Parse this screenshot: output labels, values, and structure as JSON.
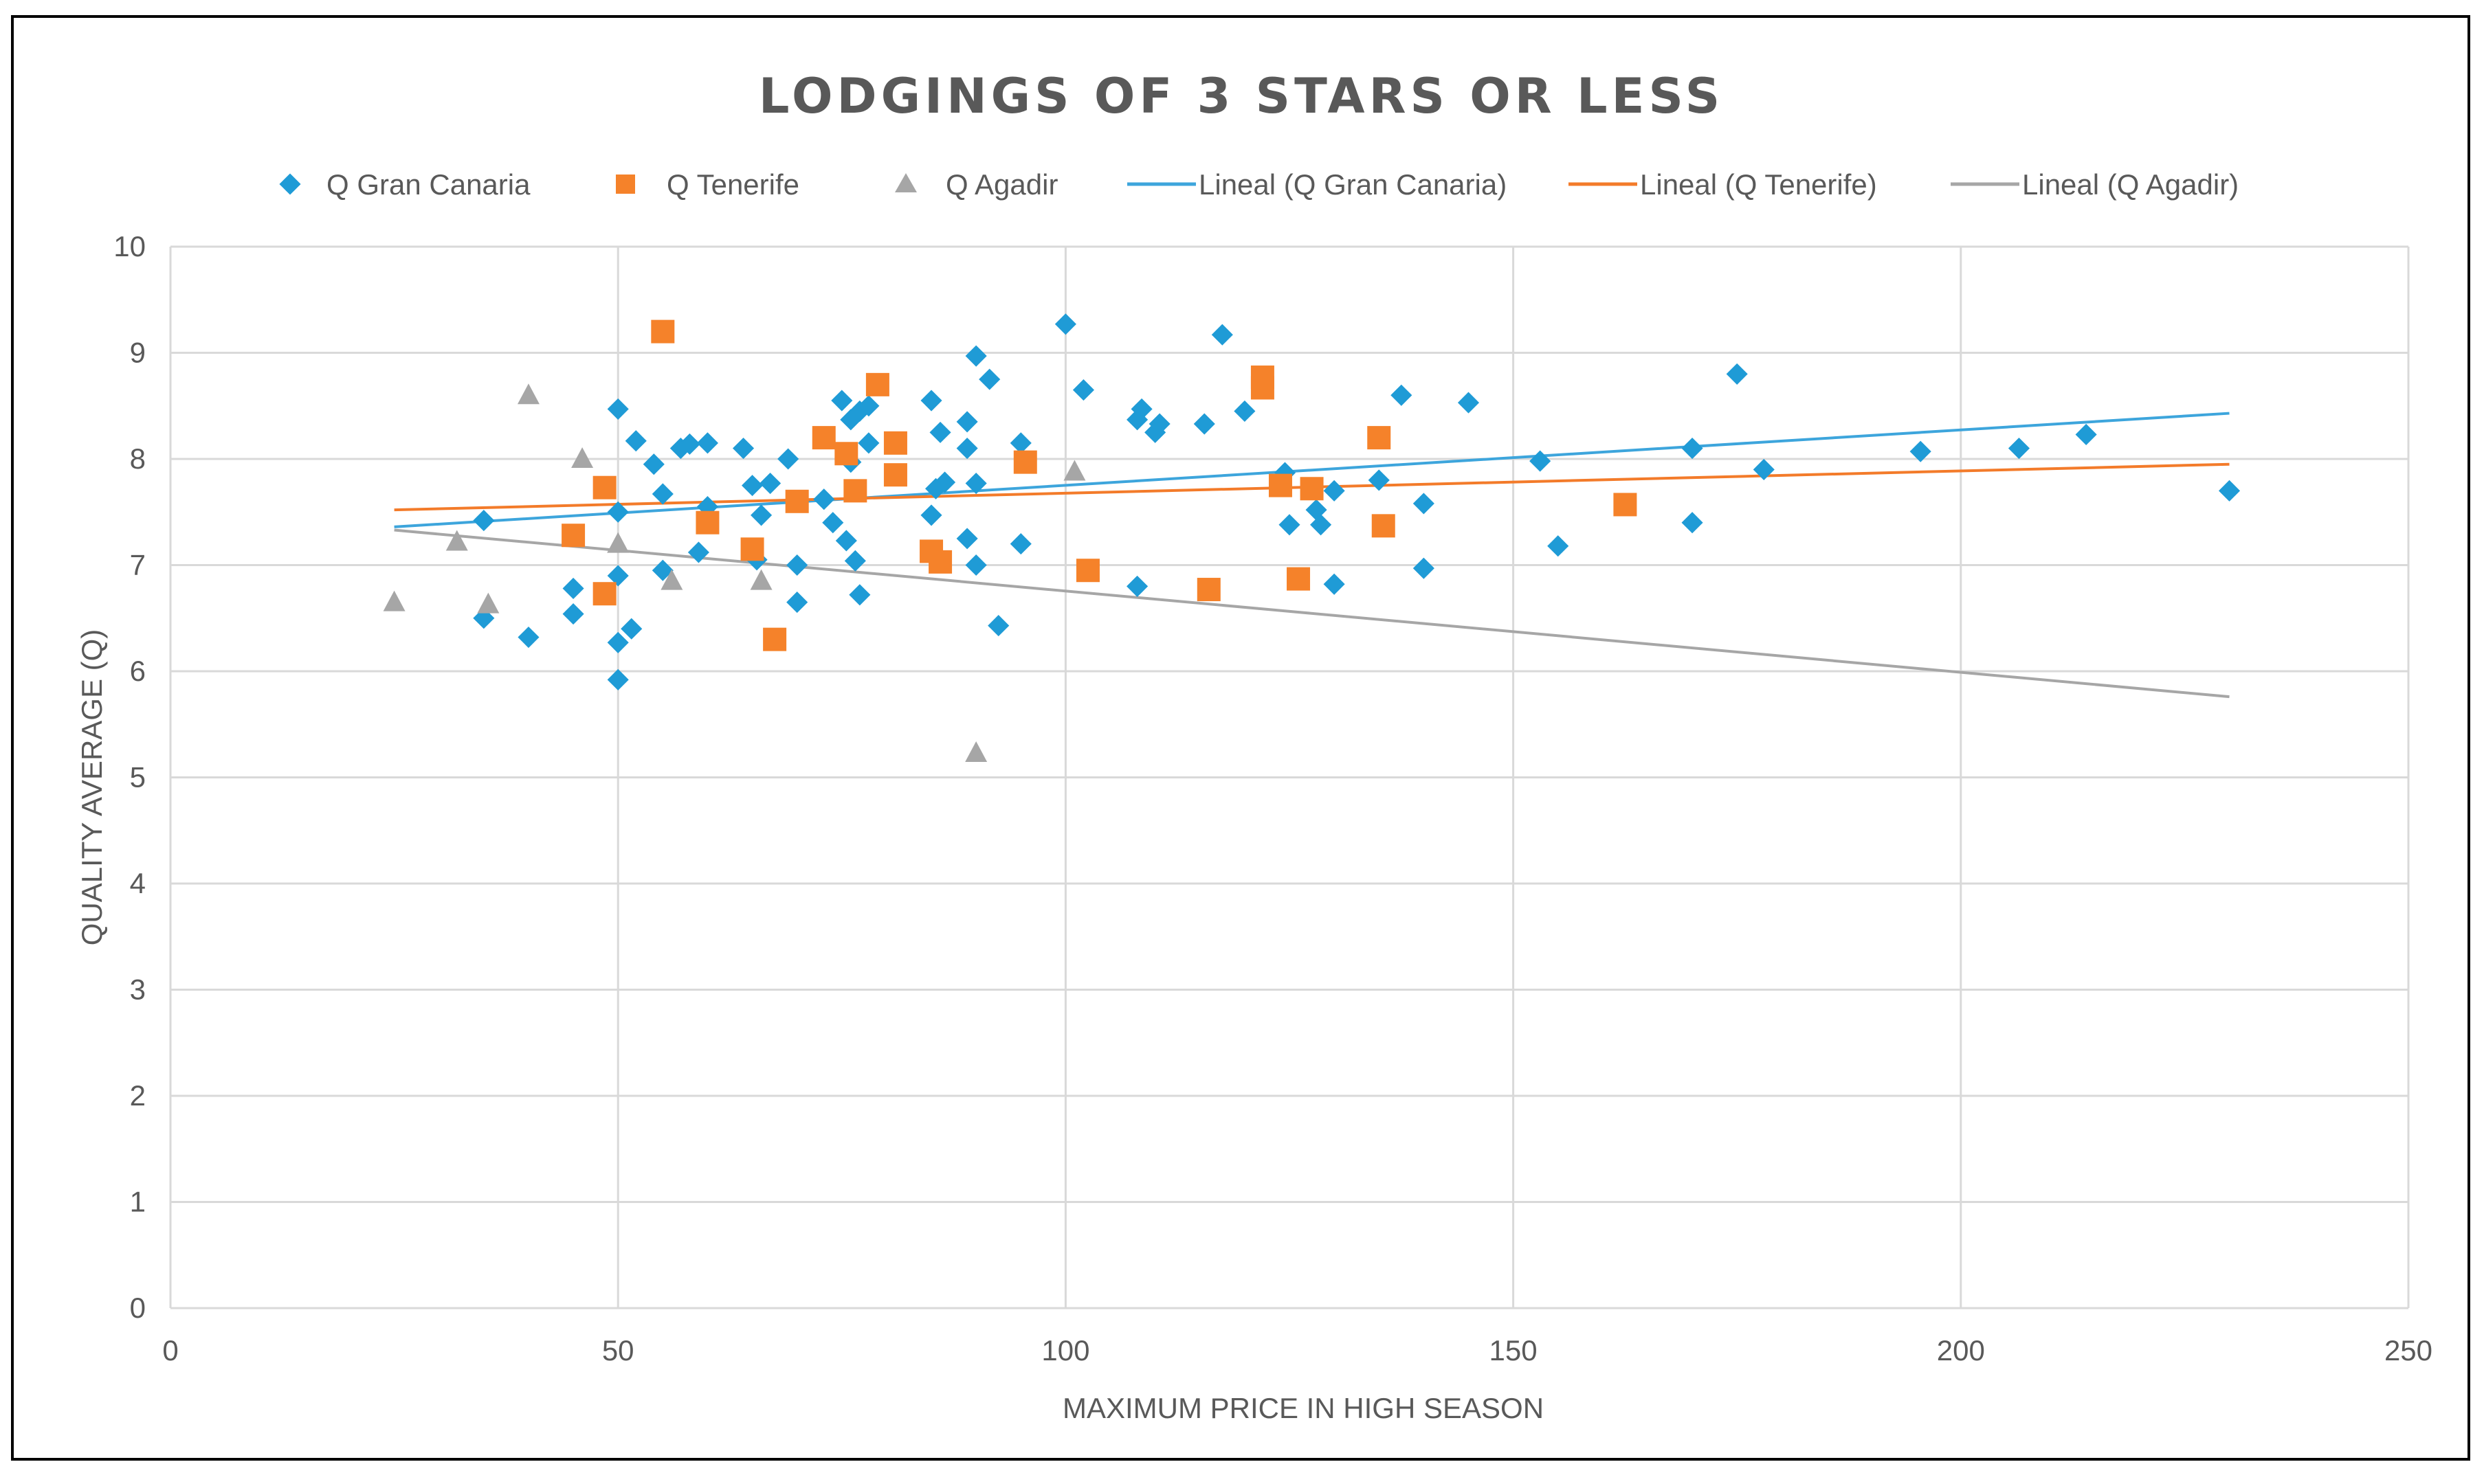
{
  "chart_data": {
    "type": "scatter",
    "title": "LODGINGS OF 3 STARS OR LESS",
    "xlabel": "MAXIMUM PRICE IN HIGH SEASON",
    "ylabel": "QUALITY AVERAGE (Q)",
    "xlim": [
      0,
      250
    ],
    "ylim": [
      0,
      10
    ],
    "xticks": [
      0,
      50,
      100,
      150,
      200,
      250
    ],
    "yticks": [
      0,
      1,
      2,
      3,
      4,
      5,
      6,
      7,
      8,
      9,
      10
    ],
    "grid": true,
    "legend_position": "top",
    "legend": [
      "Q Gran Canaria",
      "Q Tenerife",
      "Q Agadir",
      "Lineal (Q Gran Canaria)",
      "Lineal (Q Tenerife)",
      "Lineal (Q Agadir)"
    ],
    "series": [
      {
        "name": "Q Gran Canaria",
        "marker": "diamond",
        "color": "#1f9bd6",
        "points": [
          [
            35,
            7.42
          ],
          [
            35,
            6.5
          ],
          [
            40,
            6.32
          ],
          [
            45,
            6.78
          ],
          [
            45,
            6.54
          ],
          [
            50,
            8.47
          ],
          [
            52,
            8.17
          ],
          [
            54,
            7.95
          ],
          [
            50,
            7.5
          ],
          [
            50,
            6.9
          ],
          [
            50,
            6.27
          ],
          [
            51.5,
            6.4
          ],
          [
            50,
            5.92
          ],
          [
            55,
            7.67
          ],
          [
            55,
            6.95
          ],
          [
            57,
            8.1
          ],
          [
            58,
            8.14
          ],
          [
            60,
            8.15
          ],
          [
            59,
            7.12
          ],
          [
            60,
            7.55
          ],
          [
            64,
            8.1
          ],
          [
            65,
            7.75
          ],
          [
            67,
            7.77
          ],
          [
            66,
            7.47
          ],
          [
            69,
            8.0
          ],
          [
            70,
            7.0
          ],
          [
            70,
            6.65
          ],
          [
            65.5,
            7.05
          ],
          [
            75,
            8.55
          ],
          [
            76,
            8.37
          ],
          [
            77,
            8.45
          ],
          [
            78,
            8.5
          ],
          [
            78,
            8.15
          ],
          [
            73,
            7.62
          ],
          [
            74,
            7.4
          ],
          [
            75.5,
            7.23
          ],
          [
            76.5,
            7.04
          ],
          [
            77,
            6.72
          ],
          [
            76,
            7.97
          ],
          [
            85,
            8.55
          ],
          [
            86,
            8.25
          ],
          [
            89,
            8.35
          ],
          [
            89,
            8.1
          ],
          [
            85.5,
            7.72
          ],
          [
            86.5,
            7.78
          ],
          [
            85,
            7.47
          ],
          [
            89,
            7.25
          ],
          [
            90,
            7.77
          ],
          [
            90,
            7.0
          ],
          [
            90,
            8.97
          ],
          [
            91.5,
            8.75
          ],
          [
            92.5,
            6.43
          ],
          [
            95,
            8.15
          ],
          [
            95,
            7.2
          ],
          [
            100,
            9.27
          ],
          [
            102,
            8.65
          ],
          [
            108,
            8.37
          ],
          [
            108.5,
            8.47
          ],
          [
            110,
            8.25
          ],
          [
            110.5,
            8.33
          ],
          [
            115.5,
            8.33
          ],
          [
            117.5,
            9.17
          ],
          [
            120,
            8.45
          ],
          [
            108,
            6.8
          ],
          [
            124.5,
            7.87
          ],
          [
            125,
            7.38
          ],
          [
            128,
            7.52
          ],
          [
            128.5,
            7.38
          ],
          [
            130,
            7.7
          ],
          [
            130,
            6.82
          ],
          [
            135,
            7.8
          ],
          [
            137.5,
            8.6
          ],
          [
            140,
            7.58
          ],
          [
            140,
            6.97
          ],
          [
            145,
            8.53
          ],
          [
            153,
            7.98
          ],
          [
            155,
            7.18
          ],
          [
            170,
            8.1
          ],
          [
            170,
            7.4
          ],
          [
            175,
            8.8
          ],
          [
            178,
            7.9
          ],
          [
            195.5,
            8.07
          ],
          [
            206.5,
            8.1
          ],
          [
            214,
            8.23
          ],
          [
            230,
            7.7
          ]
        ]
      },
      {
        "name": "Q Tenerife",
        "marker": "square",
        "color": "#f5822a",
        "points": [
          [
            55,
            9.2
          ],
          [
            45,
            7.28
          ],
          [
            48.5,
            7.73
          ],
          [
            48.5,
            6.73
          ],
          [
            60,
            7.4
          ],
          [
            65,
            7.15
          ],
          [
            67.5,
            6.3
          ],
          [
            70,
            7.6
          ],
          [
            73,
            8.2
          ],
          [
            75.5,
            8.05
          ],
          [
            76.5,
            7.7
          ],
          [
            79,
            8.7
          ],
          [
            81,
            8.15
          ],
          [
            81,
            7.85
          ],
          [
            85,
            7.13
          ],
          [
            86,
            7.03
          ],
          [
            95.5,
            7.97
          ],
          [
            102.5,
            6.95
          ],
          [
            116,
            6.77
          ],
          [
            122,
            8.77
          ],
          [
            122,
            8.67
          ],
          [
            124,
            7.75
          ],
          [
            126,
            6.87
          ],
          [
            127.5,
            7.72
          ],
          [
            135,
            8.2
          ],
          [
            135.5,
            7.37
          ],
          [
            162.5,
            7.57
          ]
        ]
      },
      {
        "name": "Q Agadir",
        "marker": "triangle",
        "color": "#a6a6a6",
        "points": [
          [
            25,
            6.65
          ],
          [
            32,
            7.22
          ],
          [
            35.5,
            6.63
          ],
          [
            40,
            8.6
          ],
          [
            46,
            8.0
          ],
          [
            50,
            7.2
          ],
          [
            56,
            6.85
          ],
          [
            66,
            6.85
          ],
          [
            90,
            5.23
          ],
          [
            101,
            7.88
          ]
        ]
      }
    ],
    "trendlines": [
      {
        "name": "Lineal (Q Gran Canaria)",
        "color": "#3da5dc",
        "x": [
          25,
          230
        ],
        "y": [
          7.36,
          8.43
        ]
      },
      {
        "name": "Lineal (Q Tenerife)",
        "color": "#f37b2a",
        "x": [
          25,
          230
        ],
        "y": [
          7.52,
          7.95
        ]
      },
      {
        "name": "Lineal (Q Agadir)",
        "color": "#a6a6a6",
        "x": [
          25,
          230
        ],
        "y": [
          7.33,
          5.76
        ]
      }
    ]
  }
}
